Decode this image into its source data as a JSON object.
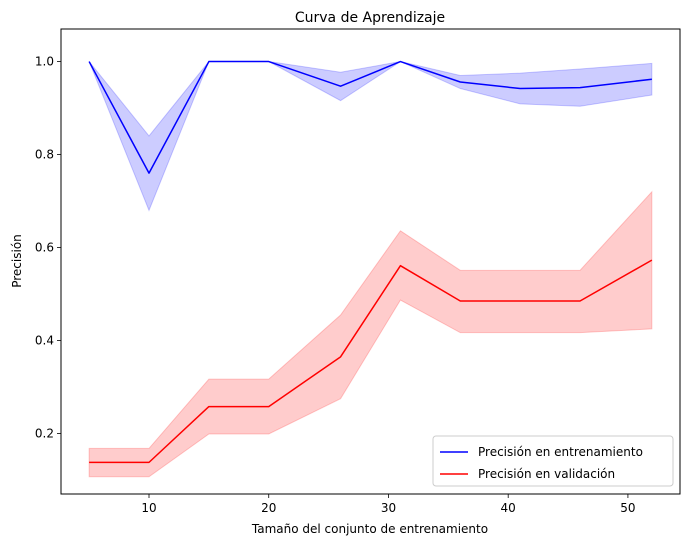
{
  "chart_data": {
    "type": "line",
    "title": "Curva de Aprendizaje",
    "xlabel": "Tamaño del conjunto de entrenamiento",
    "ylabel": "Precisión",
    "xlim": [
      2.65,
      54.35
    ],
    "ylim": [
      0.07,
      1.07
    ],
    "xticks": [
      10,
      20,
      30,
      40,
      50
    ],
    "yticks": [
      0.2,
      0.4,
      0.6,
      0.8,
      1.0
    ],
    "grid": false,
    "legend_position": "lower-right",
    "x": [
      5,
      10,
      15,
      20,
      26,
      31,
      36,
      41,
      46,
      52
    ],
    "series": [
      {
        "name": "Precisión en entrenamiento",
        "color": "#0000ff",
        "band_color": "#0000ff",
        "values": [
          1.0,
          0.76,
          1.0,
          1.0,
          0.947,
          1.0,
          0.956,
          0.942,
          0.944,
          0.962
        ],
        "lower": [
          1.0,
          0.68,
          1.0,
          1.0,
          0.916,
          1.0,
          0.942,
          0.909,
          0.904,
          0.928
        ],
        "upper": [
          1.0,
          0.84,
          1.0,
          1.0,
          0.977,
          1.0,
          0.97,
          0.975,
          0.984,
          0.996
        ]
      },
      {
        "name": "Precisión en validación",
        "color": "#ff0000",
        "band_color": "#ff0000",
        "values": [
          0.138,
          0.138,
          0.258,
          0.258,
          0.365,
          0.561,
          0.485,
          0.485,
          0.485,
          0.573
        ],
        "lower": [
          0.107,
          0.107,
          0.199,
          0.199,
          0.275,
          0.487,
          0.417,
          0.417,
          0.417,
          0.425
        ],
        "upper": [
          0.168,
          0.168,
          0.317,
          0.317,
          0.455,
          0.636,
          0.551,
          0.551,
          0.551,
          0.72
        ]
      }
    ]
  }
}
